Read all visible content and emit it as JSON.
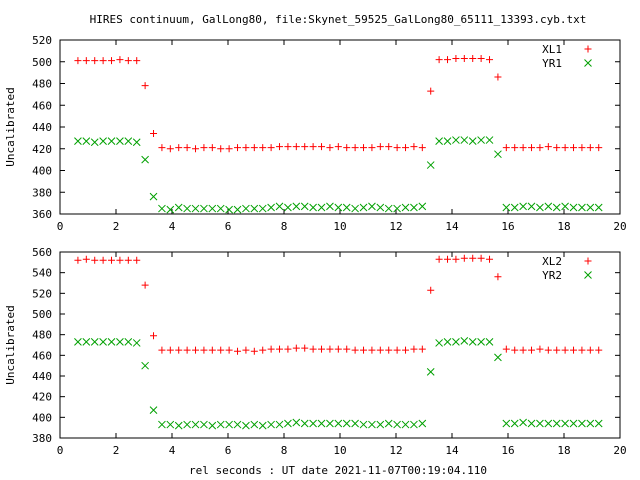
{
  "title": "HIRES continuum, GalLong80, file:Skynet_59525_GalLong80_65111_13393.cyb.txt",
  "xlabel": "rel seconds : UT date 2021-11-07T00:19:04.110",
  "colors": {
    "red": "#ff0000",
    "green": "#00a000",
    "axis": "#000000"
  },
  "chart_data": [
    {
      "type": "scatter",
      "ylabel": "Uncalibrated",
      "xlim": [
        0,
        20
      ],
      "ylim": [
        360,
        520
      ],
      "xticks": [
        0,
        2,
        4,
        6,
        8,
        10,
        12,
        14,
        16,
        18,
        20
      ],
      "yticks": [
        360,
        380,
        400,
        420,
        440,
        460,
        480,
        500,
        520
      ],
      "legend_position": "top-right",
      "series": [
        {
          "name": "XL1",
          "marker": "plus",
          "color": "#ff0000",
          "points": [
            [
              0.64,
              501
            ],
            [
              0.94,
              501
            ],
            [
              1.24,
              501
            ],
            [
              1.54,
              501
            ],
            [
              1.84,
              501
            ],
            [
              2.14,
              502
            ],
            [
              2.44,
              501
            ],
            [
              2.74,
              501
            ],
            [
              3.04,
              478
            ],
            [
              3.34,
              434
            ],
            [
              3.64,
              421
            ],
            [
              3.94,
              420
            ],
            [
              4.24,
              421
            ],
            [
              4.54,
              421
            ],
            [
              4.84,
              420
            ],
            [
              5.14,
              421
            ],
            [
              5.44,
              421
            ],
            [
              5.74,
              420
            ],
            [
              6.04,
              420
            ],
            [
              6.34,
              421
            ],
            [
              6.64,
              421
            ],
            [
              6.94,
              421
            ],
            [
              7.24,
              421
            ],
            [
              7.54,
              421
            ],
            [
              7.84,
              422
            ],
            [
              8.14,
              422
            ],
            [
              8.44,
              422
            ],
            [
              8.74,
              422
            ],
            [
              9.04,
              422
            ],
            [
              9.34,
              422
            ],
            [
              9.64,
              421
            ],
            [
              9.94,
              422
            ],
            [
              10.24,
              421
            ],
            [
              10.54,
              421
            ],
            [
              10.84,
              421
            ],
            [
              11.14,
              421
            ],
            [
              11.44,
              422
            ],
            [
              11.74,
              422
            ],
            [
              12.04,
              421
            ],
            [
              12.34,
              421
            ],
            [
              12.64,
              422
            ],
            [
              12.94,
              421
            ],
            [
              13.24,
              473
            ],
            [
              13.54,
              502
            ],
            [
              13.84,
              502
            ],
            [
              14.14,
              503
            ],
            [
              14.44,
              503
            ],
            [
              14.74,
              503
            ],
            [
              15.04,
              503
            ],
            [
              15.34,
              502
            ],
            [
              15.64,
              486
            ],
            [
              15.94,
              421
            ],
            [
              16.24,
              421
            ],
            [
              16.54,
              421
            ],
            [
              16.84,
              421
            ],
            [
              17.14,
              421
            ],
            [
              17.44,
              422
            ],
            [
              17.74,
              421
            ],
            [
              18.04,
              421
            ],
            [
              18.34,
              421
            ],
            [
              18.64,
              421
            ],
            [
              18.94,
              421
            ],
            [
              19.24,
              421
            ]
          ]
        },
        {
          "name": "YR1",
          "marker": "cross",
          "color": "#00a000",
          "points": [
            [
              0.64,
              427
            ],
            [
              0.94,
              427
            ],
            [
              1.24,
              426
            ],
            [
              1.54,
              427
            ],
            [
              1.84,
              427
            ],
            [
              2.14,
              427
            ],
            [
              2.44,
              427
            ],
            [
              2.74,
              426
            ],
            [
              3.04,
              410
            ],
            [
              3.34,
              376
            ],
            [
              3.64,
              365
            ],
            [
              3.94,
              364
            ],
            [
              4.24,
              366
            ],
            [
              4.54,
              365
            ],
            [
              4.84,
              365
            ],
            [
              5.14,
              365
            ],
            [
              5.44,
              365
            ],
            [
              5.74,
              365
            ],
            [
              6.04,
              364
            ],
            [
              6.34,
              364
            ],
            [
              6.64,
              365
            ],
            [
              6.94,
              365
            ],
            [
              7.24,
              365
            ],
            [
              7.54,
              366
            ],
            [
              7.84,
              367
            ],
            [
              8.14,
              366
            ],
            [
              8.44,
              367
            ],
            [
              8.74,
              367
            ],
            [
              9.04,
              366
            ],
            [
              9.34,
              366
            ],
            [
              9.64,
              367
            ],
            [
              9.94,
              366
            ],
            [
              10.24,
              366
            ],
            [
              10.54,
              365
            ],
            [
              10.84,
              366
            ],
            [
              11.14,
              367
            ],
            [
              11.44,
              366
            ],
            [
              11.74,
              365
            ],
            [
              12.04,
              365
            ],
            [
              12.34,
              366
            ],
            [
              12.64,
              366
            ],
            [
              12.94,
              367
            ],
            [
              13.24,
              405
            ],
            [
              13.54,
              427
            ],
            [
              13.84,
              427
            ],
            [
              14.14,
              428
            ],
            [
              14.44,
              428
            ],
            [
              14.74,
              427
            ],
            [
              15.04,
              428
            ],
            [
              15.34,
              428
            ],
            [
              15.64,
              415
            ],
            [
              15.94,
              366
            ],
            [
              16.24,
              366
            ],
            [
              16.54,
              367
            ],
            [
              16.84,
              367
            ],
            [
              17.14,
              366
            ],
            [
              17.44,
              367
            ],
            [
              17.74,
              366
            ],
            [
              18.04,
              367
            ],
            [
              18.34,
              366
            ],
            [
              18.64,
              366
            ],
            [
              18.94,
              366
            ],
            [
              19.24,
              366
            ]
          ]
        }
      ]
    },
    {
      "type": "scatter",
      "ylabel": "Uncalibrated",
      "xlim": [
        0,
        20
      ],
      "ylim": [
        380,
        560
      ],
      "xticks": [
        0,
        2,
        4,
        6,
        8,
        10,
        12,
        14,
        16,
        18,
        20
      ],
      "yticks": [
        380,
        400,
        420,
        440,
        460,
        480,
        500,
        520,
        540,
        560
      ],
      "legend_position": "top-right",
      "series": [
        {
          "name": "XL2",
          "marker": "plus",
          "color": "#ff0000",
          "points": [
            [
              0.64,
              552
            ],
            [
              0.94,
              553
            ],
            [
              1.24,
              552
            ],
            [
              1.54,
              552
            ],
            [
              1.84,
              552
            ],
            [
              2.14,
              552
            ],
            [
              2.44,
              552
            ],
            [
              2.74,
              552
            ],
            [
              3.04,
              528
            ],
            [
              3.34,
              479
            ],
            [
              3.64,
              465
            ],
            [
              3.94,
              465
            ],
            [
              4.24,
              465
            ],
            [
              4.54,
              465
            ],
            [
              4.84,
              465
            ],
            [
              5.14,
              465
            ],
            [
              5.44,
              465
            ],
            [
              5.74,
              465
            ],
            [
              6.04,
              465
            ],
            [
              6.34,
              464
            ],
            [
              6.64,
              465
            ],
            [
              6.94,
              464
            ],
            [
              7.24,
              465
            ],
            [
              7.54,
              466
            ],
            [
              7.84,
              466
            ],
            [
              8.14,
              466
            ],
            [
              8.44,
              467
            ],
            [
              8.74,
              467
            ],
            [
              9.04,
              466
            ],
            [
              9.34,
              466
            ],
            [
              9.64,
              466
            ],
            [
              9.94,
              466
            ],
            [
              10.24,
              466
            ],
            [
              10.54,
              465
            ],
            [
              10.84,
              465
            ],
            [
              11.14,
              465
            ],
            [
              11.44,
              465
            ],
            [
              11.74,
              465
            ],
            [
              12.04,
              465
            ],
            [
              12.34,
              465
            ],
            [
              12.64,
              466
            ],
            [
              12.94,
              466
            ],
            [
              13.24,
              523
            ],
            [
              13.54,
              553
            ],
            [
              13.84,
              553
            ],
            [
              14.14,
              553
            ],
            [
              14.44,
              554
            ],
            [
              14.74,
              554
            ],
            [
              15.04,
              554
            ],
            [
              15.34,
              553
            ],
            [
              15.64,
              536
            ],
            [
              15.94,
              466
            ],
            [
              16.24,
              465
            ],
            [
              16.54,
              465
            ],
            [
              16.84,
              465
            ],
            [
              17.14,
              466
            ],
            [
              17.44,
              465
            ],
            [
              17.74,
              465
            ],
            [
              18.04,
              465
            ],
            [
              18.34,
              465
            ],
            [
              18.64,
              465
            ],
            [
              18.94,
              465
            ],
            [
              19.24,
              465
            ]
          ]
        },
        {
          "name": "YR2",
          "marker": "cross",
          "color": "#00a000",
          "points": [
            [
              0.64,
              473
            ],
            [
              0.94,
              473
            ],
            [
              1.24,
              473
            ],
            [
              1.54,
              473
            ],
            [
              1.84,
              473
            ],
            [
              2.14,
              473
            ],
            [
              2.44,
              473
            ],
            [
              2.74,
              472
            ],
            [
              3.04,
              450
            ],
            [
              3.34,
              407
            ],
            [
              3.64,
              393
            ],
            [
              3.94,
              393
            ],
            [
              4.24,
              392
            ],
            [
              4.54,
              393
            ],
            [
              4.84,
              393
            ],
            [
              5.14,
              393
            ],
            [
              5.44,
              392
            ],
            [
              5.74,
              393
            ],
            [
              6.04,
              393
            ],
            [
              6.34,
              393
            ],
            [
              6.64,
              392
            ],
            [
              6.94,
              393
            ],
            [
              7.24,
              392
            ],
            [
              7.54,
              393
            ],
            [
              7.84,
              393
            ],
            [
              8.14,
              394
            ],
            [
              8.44,
              395
            ],
            [
              8.74,
              394
            ],
            [
              9.04,
              394
            ],
            [
              9.34,
              394
            ],
            [
              9.64,
              394
            ],
            [
              9.94,
              394
            ],
            [
              10.24,
              394
            ],
            [
              10.54,
              394
            ],
            [
              10.84,
              393
            ],
            [
              11.14,
              393
            ],
            [
              11.44,
              393
            ],
            [
              11.74,
              394
            ],
            [
              12.04,
              393
            ],
            [
              12.34,
              393
            ],
            [
              12.64,
              393
            ],
            [
              12.94,
              394
            ],
            [
              13.24,
              444
            ],
            [
              13.54,
              472
            ],
            [
              13.84,
              473
            ],
            [
              14.14,
              473
            ],
            [
              14.44,
              474
            ],
            [
              14.74,
              473
            ],
            [
              15.04,
              473
            ],
            [
              15.34,
              473
            ],
            [
              15.64,
              458
            ],
            [
              15.94,
              394
            ],
            [
              16.24,
              394
            ],
            [
              16.54,
              395
            ],
            [
              16.84,
              394
            ],
            [
              17.14,
              394
            ],
            [
              17.44,
              394
            ],
            [
              17.74,
              394
            ],
            [
              18.04,
              394
            ],
            [
              18.34,
              394
            ],
            [
              18.64,
              394
            ],
            [
              18.94,
              394
            ],
            [
              19.24,
              394
            ]
          ]
        }
      ]
    }
  ]
}
